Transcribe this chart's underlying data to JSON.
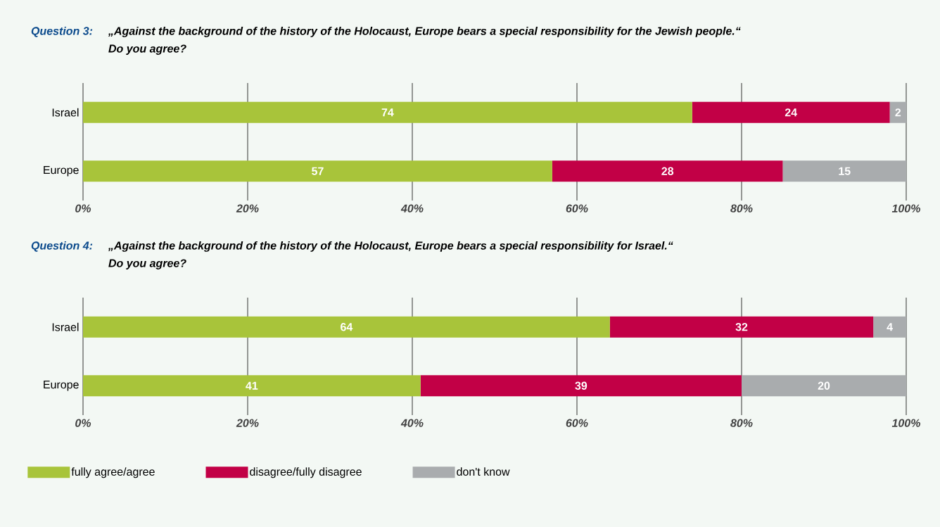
{
  "chart_data": [
    {
      "type": "bar",
      "orientation": "horizontal",
      "stacked": true,
      "title": "Question 3:",
      "subtitle": "„Against the background of the history of the Holocaust, Europe bears a special responsibility for the Jewish people.“",
      "annotations": [
        "Do you agree?"
      ],
      "categories": [
        "Israel",
        "Europe"
      ],
      "series": [
        {
          "color": "#a8c43a",
          "values": [
            74,
            57
          ]
        },
        {
          "color": "#c20046",
          "values": [
            24,
            28
          ]
        },
        {
          "color": "#a9acae",
          "values": [
            2,
            15
          ]
        }
      ],
      "xlim": [
        0,
        100
      ],
      "xticks": [
        {
          "value": 0,
          "label": "0%"
        },
        {
          "value": 20,
          "label": "20%"
        },
        {
          "value": 40,
          "label": "40%"
        },
        {
          "value": 60,
          "label": "60%"
        },
        {
          "value": 80,
          "label": "80%"
        },
        {
          "value": 100,
          "label": "100%"
        }
      ],
      "grid": "x",
      "data_labels": true,
      "legend": false
    },
    {
      "type": "bar",
      "orientation": "horizontal",
      "stacked": true,
      "title": "Question 4:",
      "subtitle": "„Against the background of the history of the Holocaust, Europe bears a special responsibility for Israel.“",
      "annotations": [
        "Do you agree?"
      ],
      "categories": [
        "Israel",
        "Europe"
      ],
      "series": [
        {
          "name": "fully agree/agree",
          "color": "#a8c43a",
          "values": [
            64,
            41
          ]
        },
        {
          "name": "disagree/fully disagree",
          "color": "#c20046",
          "values": [
            32,
            39
          ]
        },
        {
          "name": "don't know",
          "color": "#a9acae",
          "values": [
            4,
            20
          ]
        }
      ],
      "xlim": [
        0,
        100
      ],
      "xticks": [
        {
          "value": 0,
          "label": "0%"
        },
        {
          "value": 20,
          "label": "20%"
        },
        {
          "value": 40,
          "label": "40%"
        },
        {
          "value": 60,
          "label": "60%"
        },
        {
          "value": 80,
          "label": "80%"
        },
        {
          "value": 100,
          "label": "100%"
        }
      ],
      "grid": "x",
      "data_labels": true,
      "legend": "bottom"
    }
  ]
}
